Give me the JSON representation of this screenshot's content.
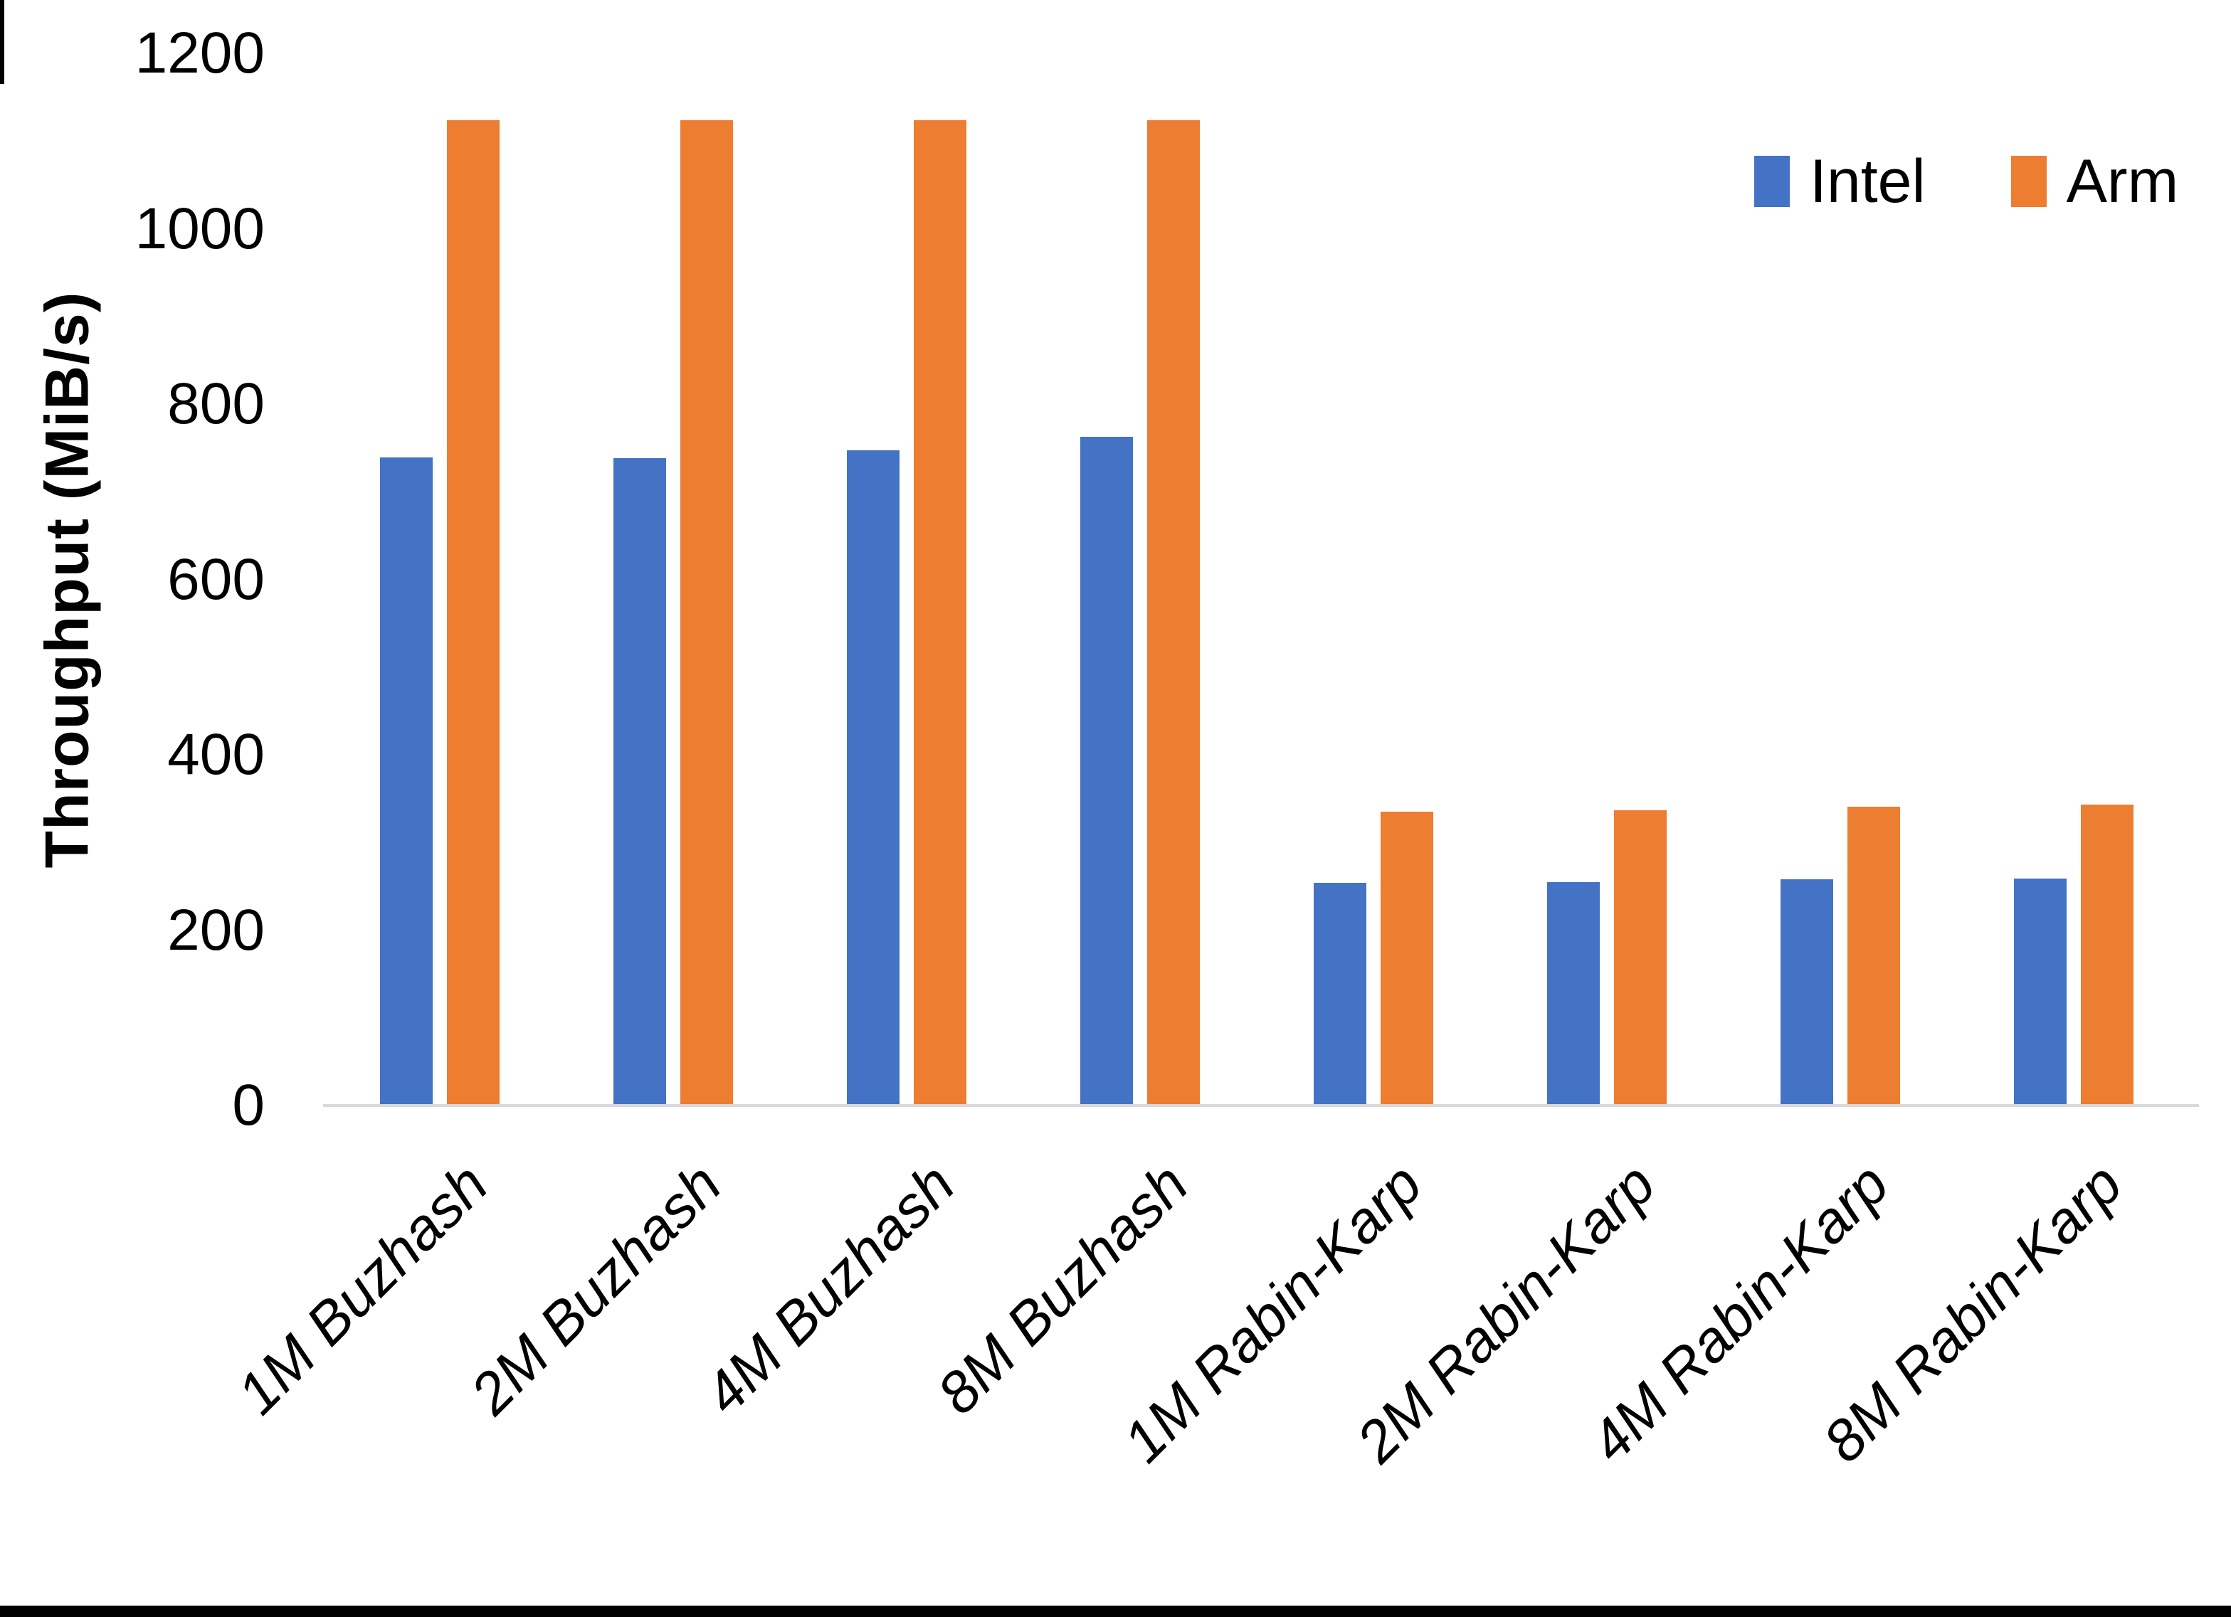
{
  "chart_data": {
    "type": "bar",
    "title": "",
    "xlabel": "",
    "ylabel": "Throughput (MiB/s)",
    "ylim": [
      0,
      1200
    ],
    "ytick_interval": 200,
    "yticks": [
      0,
      200,
      400,
      600,
      800,
      1000,
      1200
    ],
    "ytick_labels": [
      "0",
      "200",
      "400",
      "600",
      "800",
      "1000",
      "1200"
    ],
    "categories": [
      "1M Buzhash",
      "2M Buzhash",
      "4M Buzhash",
      "8M Buzhash",
      "1M Rabin-Karp",
      "2M Rabin-Karp",
      "4M Rabin-Karp",
      "8M Rabin-Karp"
    ],
    "series": [
      {
        "name": "Intel",
        "color": "#4472C4",
        "values": [
          739,
          738,
          747,
          763,
          254,
          255,
          258,
          259
        ]
      },
      {
        "name": "Arm",
        "color": "#ED7D31",
        "values": [
          1124,
          1124,
          1124,
          1124,
          335,
          337,
          341,
          343
        ]
      }
    ],
    "legend_position": "top-right",
    "grid": false
  },
  "frame": {
    "bottom_bar_color": "#000000",
    "left_tick_color": "#000000",
    "axis_line_color": "#d9d9d9"
  }
}
